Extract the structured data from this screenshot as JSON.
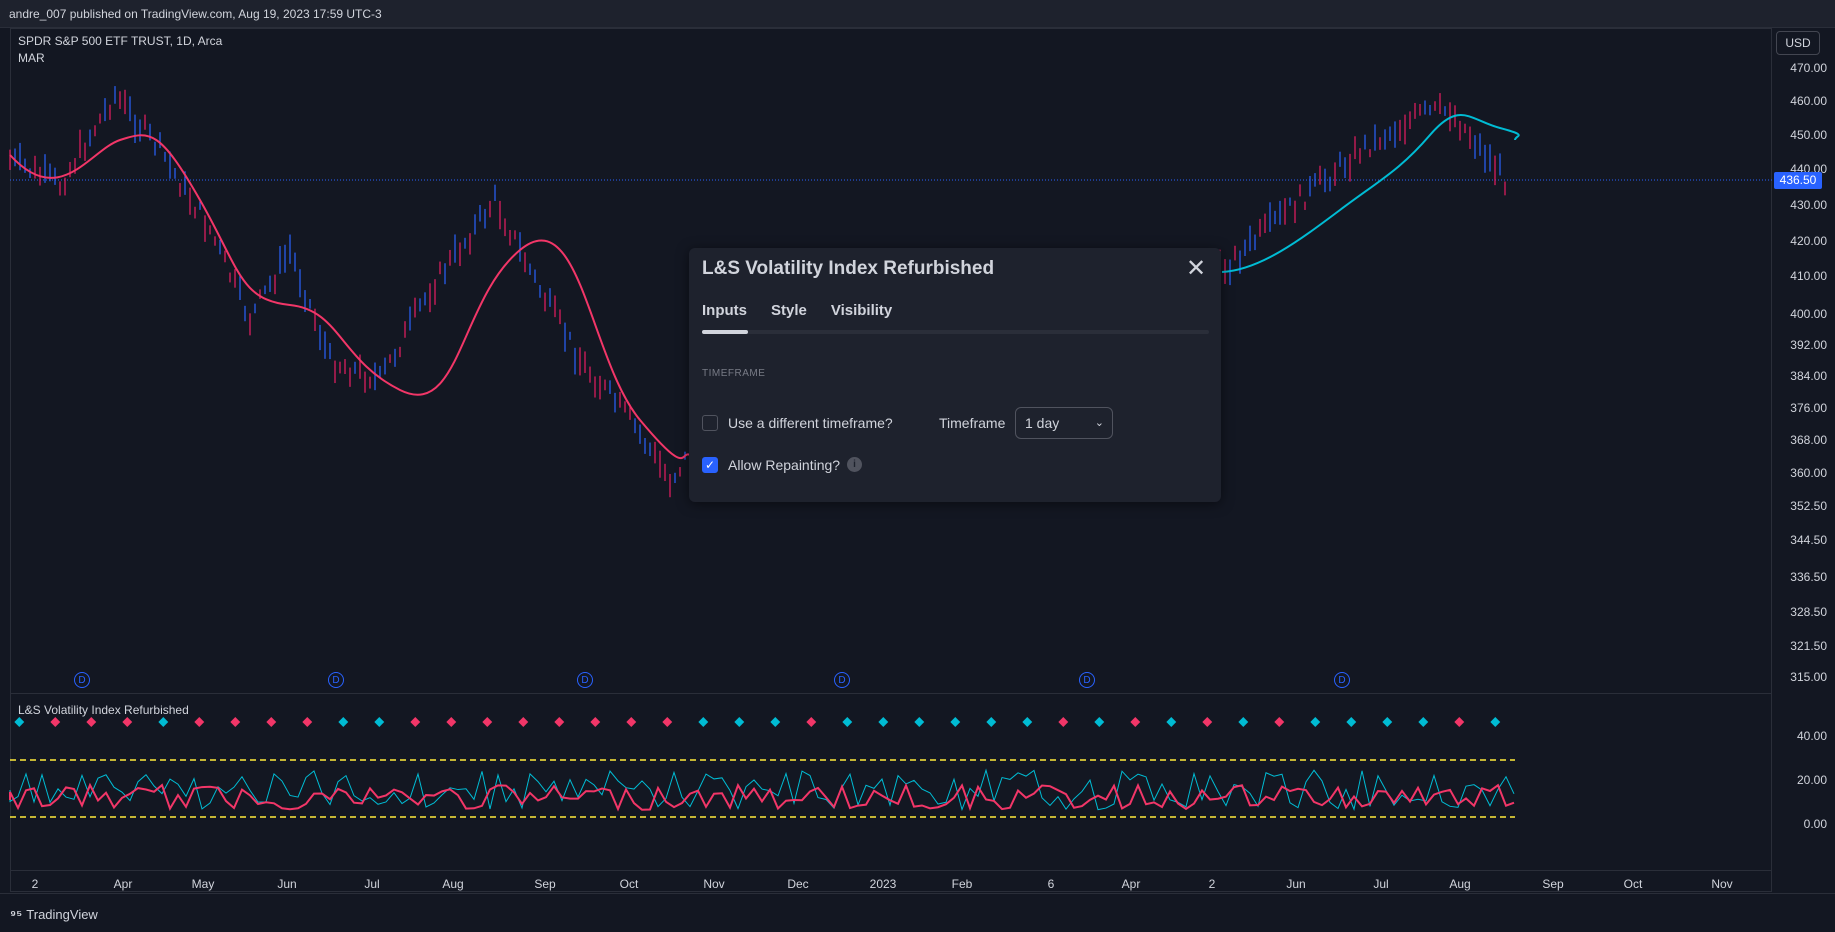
{
  "topbar": {
    "text": "andre_007 published on TradingView.com, Aug 19, 2023 17:59 UTC-3"
  },
  "symbol": {
    "line1": "SPDR S&P 500 ETF TRUST, 1D, Arca",
    "line2": "MAR"
  },
  "currency": "USD",
  "current_price": "436.50",
  "price_ticks": [
    "470.00",
    "460.00",
    "450.00",
    "440.00",
    "430.00",
    "420.00",
    "410.00",
    "400.00",
    "392.00",
    "384.00",
    "376.00",
    "368.00",
    "360.00",
    "352.50",
    "344.50",
    "336.50",
    "328.50",
    "321.50",
    "315.00"
  ],
  "indicator_ticks": [
    "40.00",
    "20.00",
    "0.00"
  ],
  "time_ticks": [
    "2",
    "Apr",
    "May",
    "Jun",
    "Jul",
    "Aug",
    "Sep",
    "Oct",
    "Nov",
    "Dec",
    "2023",
    "Feb",
    "6",
    "Apr",
    "2",
    "Jun",
    "Jul",
    "Aug",
    "Sep",
    "Oct",
    "Nov"
  ],
  "dividend_marker": "D",
  "indicator_label": "L&S Volatility Index Refurbished",
  "brand": {
    "name": "TradingView"
  },
  "dialog": {
    "title": "L&S Volatility Index Refurbished",
    "tabs": [
      "Inputs",
      "Style",
      "Visibility"
    ],
    "section": "TIMEFRAME",
    "use_different_tf_label": "Use a different timeframe?",
    "timeframe_label": "Timeframe",
    "timeframe_value": "1 day",
    "allow_repainting_label": "Allow Repainting?"
  },
  "colors": {
    "bull": "#2962ff",
    "bear": "#e91e63",
    "ma_up": "#00bcd4",
    "ma_down": "#f23668",
    "threshold": "#ffeb3b",
    "accent": "#2962ff"
  }
}
